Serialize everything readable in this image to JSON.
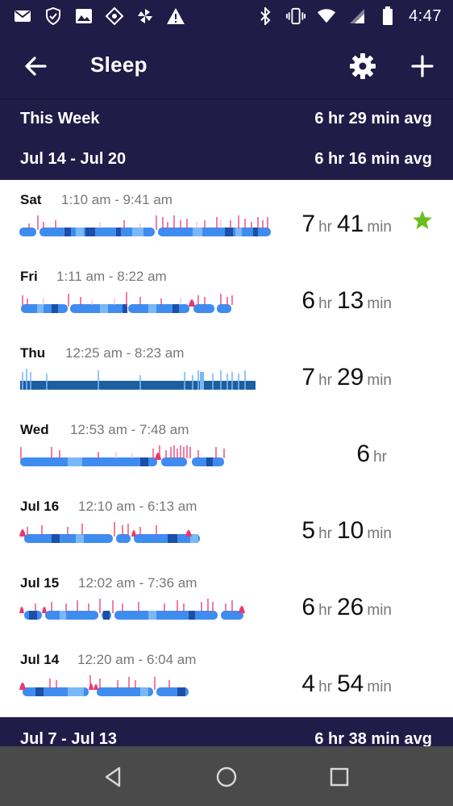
{
  "status_bar": {
    "time": "4:47"
  },
  "header": {
    "title": "Sleep"
  },
  "this_week": {
    "label": "This Week",
    "avg": "6 hr 29 min avg"
  },
  "current_range": {
    "label": "Jul 14 - Jul 20",
    "avg": "6 hr 16 min avg"
  },
  "entries": [
    {
      "day": "Sat",
      "times": "1:10 am - 9:41 am",
      "hours": "7",
      "hr_unit": "hr",
      "minutes": "41",
      "min_unit": "min",
      "starred": true
    },
    {
      "day": "Fri",
      "times": "1:11 am - 8:22 am",
      "hours": "6",
      "hr_unit": "hr",
      "minutes": "13",
      "min_unit": "min",
      "starred": false
    },
    {
      "day": "Thu",
      "times": "12:25 am - 8:23 am",
      "hours": "7",
      "hr_unit": "hr",
      "minutes": "29",
      "min_unit": "min",
      "starred": false
    },
    {
      "day": "Wed",
      "times": "12:53 am - 7:48 am",
      "hours": "6",
      "hr_unit": "hr",
      "minutes": "",
      "min_unit": "",
      "starred": false
    },
    {
      "day": "Jul 16",
      "times": "12:10 am - 6:13 am",
      "hours": "5",
      "hr_unit": "hr",
      "minutes": "10",
      "min_unit": "min",
      "starred": false
    },
    {
      "day": "Jul 15",
      "times": "12:02 am - 7:36 am",
      "hours": "6",
      "hr_unit": "hr",
      "minutes": "26",
      "min_unit": "min",
      "starred": false
    },
    {
      "day": "Jul 14",
      "times": "12:20 am - 6:04 am",
      "hours": "4",
      "hr_unit": "hr",
      "minutes": "54",
      "min_unit": "min",
      "starred": false
    }
  ],
  "previous_range": {
    "label": "Jul 7 - Jul 13",
    "avg": "6 hr 38 min avg"
  },
  "colors": {
    "header_bg": "#201b47",
    "awake": "#e8386b",
    "light": "#3f8cf0",
    "deep": "#1c4fa6",
    "rem": "#7ab8f5",
    "star": "#6abf1f"
  },
  "icons": {
    "back": "arrow-left-icon",
    "settings": "gear-icon",
    "add": "plus-icon",
    "star": "star-icon"
  }
}
